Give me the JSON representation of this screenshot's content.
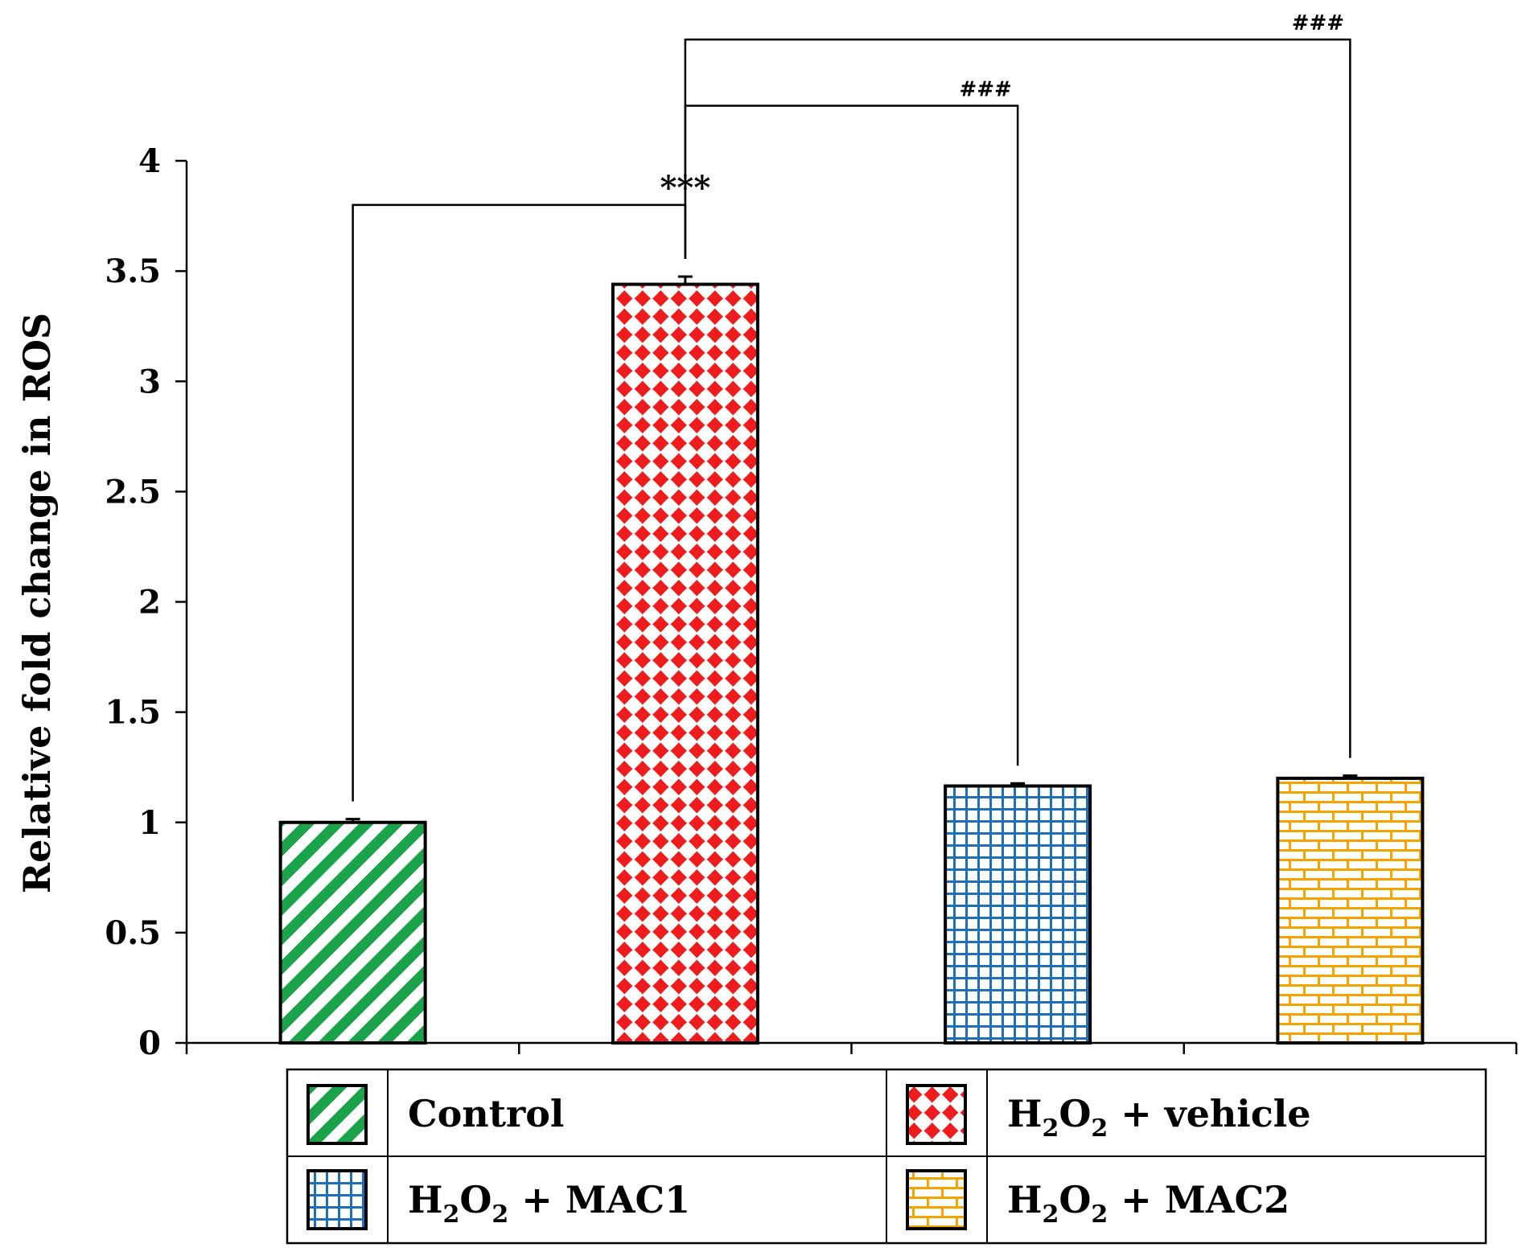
{
  "chart_data": {
    "type": "bar",
    "title": "",
    "xlabel": "",
    "ylabel": "Relative fold change in ROS",
    "ylim": [
      0,
      4
    ],
    "yticks": [
      "0",
      "0.5",
      "1",
      "1.5",
      "2",
      "2.5",
      "3",
      "3.5",
      "4"
    ],
    "grid": false,
    "categories": [
      "Control",
      "H2O2 + vehicle",
      "H2O2 + MAC1",
      "H2O2 + MAC2"
    ],
    "values": [
      1.0,
      3.44,
      1.165,
      1.2
    ],
    "errors": [
      0.015,
      0.035,
      0.012,
      0.012
    ],
    "legend": {
      "placement": "bottom",
      "entries": [
        {
          "label": "Control",
          "pattern": "diagonal-stripes",
          "color": "#1aa34a"
        },
        {
          "label": "H2O2 + vehicle",
          "pattern": "diamonds",
          "color": "#ee1c1c"
        },
        {
          "label": "H2O2 + MAC1",
          "pattern": "grid",
          "color": "#1f6fb8"
        },
        {
          "label": "H2O2 + MAC2",
          "pattern": "bricks",
          "color": "#f5a300"
        }
      ]
    },
    "annotations": [
      {
        "from": 0,
        "to": 1,
        "label": "***",
        "level": 3.8
      },
      {
        "from": 1,
        "to": 2,
        "label": "###",
        "level": 4.25
      },
      {
        "from": 1,
        "to": 3,
        "label": "###",
        "level": 4.55
      }
    ]
  }
}
